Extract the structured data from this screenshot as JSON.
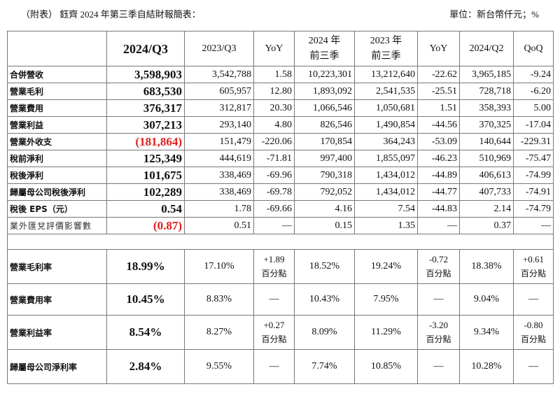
{
  "title": "（附表） 鈺齊 2024 年第三季自結財報簡表：",
  "unit": "單位：新台幣仟元；%",
  "headers": [
    "",
    "2024/Q3",
    "2023/Q3",
    "YoY",
    "2024 年\n前三季",
    "2023 年\n前三季",
    "YoY",
    "2024/Q2",
    "QoQ"
  ],
  "rows": [
    {
      "label": "合併營收",
      "cells": [
        "3,598,903",
        "3,542,788",
        "1.58",
        "10,223,301",
        "13,212,640",
        "-22.62",
        "3,965,185",
        "-9.24"
      ]
    },
    {
      "label": "營業毛利",
      "cells": [
        "683,530",
        "605,957",
        "12.80",
        "1,893,092",
        "2,541,535",
        "-25.51",
        "728,718",
        "-6.20"
      ]
    },
    {
      "label": "營業費用",
      "cells": [
        "376,317",
        "312,817",
        "20.30",
        "1,066,546",
        "1,050,681",
        "1.51",
        "358,393",
        "5.00"
      ]
    },
    {
      "label": "營業利益",
      "cells": [
        "307,213",
        "293,140",
        "4.80",
        "826,546",
        "1,490,854",
        "-44.56",
        "370,325",
        "-17.04"
      ]
    },
    {
      "label": "營業外收支",
      "cells": [
        "(181,864)",
        "151,479",
        "-220.06",
        "170,854",
        "364,243",
        "-53.09",
        "140,644",
        "-229.31"
      ],
      "negative": true
    },
    {
      "label": "稅前淨利",
      "cells": [
        "125,349",
        "444,619",
        "-71.81",
        "997,400",
        "1,855,097",
        "-46.23",
        "510,969",
        "-75.47"
      ]
    },
    {
      "label": "稅後淨利",
      "cells": [
        "101,675",
        "338,469",
        "-69.96",
        "790,318",
        "1,434,012",
        "-44.89",
        "406,613",
        "-74.99"
      ]
    },
    {
      "label": "歸屬母公司稅後淨利",
      "cells": [
        "102,289",
        "338,469",
        "-69.78",
        "792,052",
        "1,434,012",
        "-44.77",
        "407,733",
        "-74.91"
      ]
    },
    {
      "label": "稅後 EPS（元）",
      "cells": [
        "0.54",
        "1.78",
        "-69.66",
        "4.16",
        "7.54",
        "-44.83",
        "2.14",
        "-74.79"
      ]
    },
    {
      "label": "業外匯兌評價影響數",
      "cells": [
        "(0.87)",
        "0.51",
        "—",
        "0.15",
        "1.35",
        "—",
        "0.37",
        "—"
      ],
      "negative": true,
      "light": true
    }
  ],
  "ratio_rows": [
    {
      "label": "營業毛利率",
      "cells": [
        "18.99%",
        "17.10%",
        {
          "v": "+1.89",
          "u": "百分點"
        },
        "18.52%",
        "19.24%",
        {
          "v": "-0.72",
          "u": "百分點"
        },
        "18.38%",
        {
          "v": "+0.61",
          "u": "百分點"
        }
      ]
    },
    {
      "label": "營業費用率",
      "cells": [
        "10.45%",
        "8.83%",
        "—",
        "10.43%",
        "7.95%",
        "—",
        "9.04%",
        "—"
      ]
    },
    {
      "label": "營業利益率",
      "cells": [
        "8.54%",
        "8.27%",
        {
          "v": "+0.27",
          "u": "百分點"
        },
        "8.09%",
        "11.29%",
        {
          "v": "-3.20",
          "u": "百分點"
        },
        "9.34%",
        {
          "v": "-0.80",
          "u": "百分點"
        }
      ]
    },
    {
      "label": "歸屬母公司淨利率",
      "cells": [
        "2.84%",
        "9.55%",
        "—",
        "7.74%",
        "10.85%",
        "—",
        "10.28%",
        "—"
      ]
    }
  ],
  "colors": {
    "negative": "#e0201b",
    "border": "#777777"
  }
}
